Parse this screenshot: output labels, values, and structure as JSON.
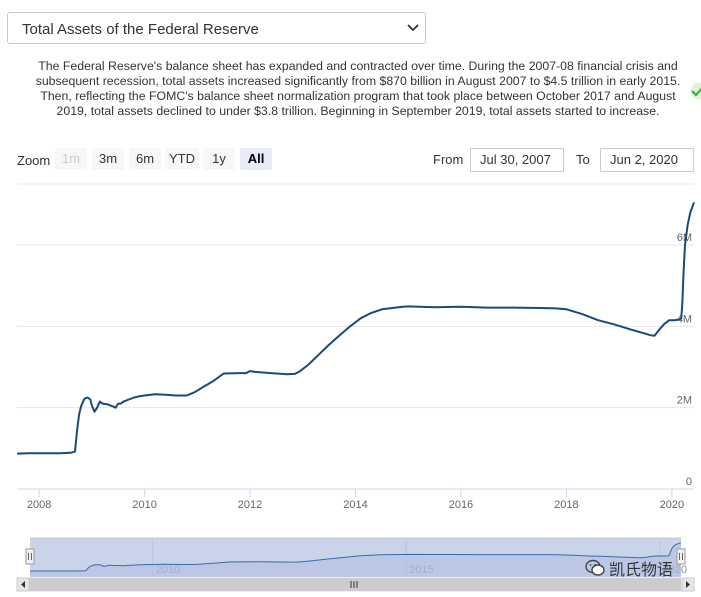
{
  "selector": {
    "label": "Total Assets of the Federal Reserve"
  },
  "description": "The Federal Reserve's balance sheet has expanded and contracted over time. During the 2007-08 financial crisis and subsequent recession, total assets increased significantly from $870 billion in August 2007 to $4.5 trillion in early 2015. Then, reflecting the FOMC's balance sheet normalization program that took place between October 2017 and August 2019, total assets declined to under $3.8 trillion. Beginning in September 2019, total assets started to increase.",
  "range_selector": {
    "zoom_label": "Zoom",
    "buttons": [
      {
        "label": "1m",
        "state": "disabled"
      },
      {
        "label": "3m",
        "state": "normal"
      },
      {
        "label": "6m",
        "state": "normal"
      },
      {
        "label": "YTD",
        "state": "normal"
      },
      {
        "label": "1y",
        "state": "normal"
      },
      {
        "label": "All",
        "state": "active"
      }
    ],
    "from_label": "From",
    "from_value": "Jul 30, 2007",
    "to_label": "To",
    "to_value": "Jun 2, 2020"
  },
  "watermark": "凯氏物语",
  "colors": {
    "line": "#1a4a7a",
    "navigator_fill": "#c9d3ea",
    "grid": "#e6e6e6"
  },
  "chart_data": {
    "type": "line",
    "xlabel": "",
    "ylabel": "",
    "xlim": [
      2007.58,
      2020.42
    ],
    "ylim": [
      0,
      7.5
    ],
    "x_ticks": [
      {
        "value": 2008,
        "label": "2008"
      },
      {
        "value": 2010,
        "label": "2010"
      },
      {
        "value": 2012,
        "label": "2012"
      },
      {
        "value": 2014,
        "label": "2014"
      },
      {
        "value": 2016,
        "label": "2016"
      },
      {
        "value": 2018,
        "label": "2018"
      },
      {
        "value": 2020,
        "label": "2020"
      }
    ],
    "y_ticks": [
      {
        "value": 0,
        "label": "0"
      },
      {
        "value": 2,
        "label": "2M"
      },
      {
        "value": 4,
        "label": "4M"
      },
      {
        "value": 6,
        "label": "6M"
      }
    ],
    "navigator_ticks": [
      {
        "value": 2010,
        "label": "2010"
      },
      {
        "value": 2015,
        "label": "2015"
      },
      {
        "value": 2020,
        "label": "2020"
      }
    ],
    "grid": true,
    "legend": "none",
    "series": [
      {
        "x": [
          2007.58,
          2007.8,
          2008.0,
          2008.2,
          2008.4,
          2008.6,
          2008.68,
          2008.72,
          2008.76,
          2008.8,
          2008.86,
          2008.92,
          2008.97,
          2009.0,
          2009.05,
          2009.1,
          2009.15,
          2009.2,
          2009.3,
          2009.4,
          2009.45,
          2009.5,
          2009.55,
          2009.6,
          2009.7,
          2009.8,
          2009.9,
          2010.0,
          2010.2,
          2010.4,
          2010.6,
          2010.8,
          2010.95,
          2011.1,
          2011.3,
          2011.5,
          2011.8,
          2011.92,
          2012.0,
          2012.1,
          2012.3,
          2012.5,
          2012.7,
          2012.85,
          2012.95,
          2013.1,
          2013.3,
          2013.5,
          2013.7,
          2013.9,
          2014.1,
          2014.3,
          2014.5,
          2014.7,
          2014.9,
          2015.0,
          2015.5,
          2016.0,
          2016.5,
          2017.0,
          2017.5,
          2017.8,
          2018.0,
          2018.3,
          2018.6,
          2018.9,
          2019.2,
          2019.5,
          2019.6,
          2019.67,
          2019.75,
          2019.85,
          2019.95,
          2020.05,
          2020.15,
          2020.18,
          2020.2,
          2020.22,
          2020.25,
          2020.3,
          2020.35,
          2020.42
        ],
        "y": [
          0.87,
          0.88,
          0.88,
          0.88,
          0.88,
          0.89,
          0.92,
          1.45,
          1.85,
          2.05,
          2.22,
          2.25,
          2.2,
          2.05,
          1.9,
          2.0,
          2.15,
          2.1,
          2.08,
          2.03,
          2.0,
          2.1,
          2.1,
          2.15,
          2.2,
          2.25,
          2.28,
          2.3,
          2.33,
          2.32,
          2.3,
          2.3,
          2.38,
          2.5,
          2.65,
          2.84,
          2.85,
          2.85,
          2.9,
          2.88,
          2.86,
          2.84,
          2.82,
          2.83,
          2.9,
          3.05,
          3.3,
          3.55,
          3.78,
          4.0,
          4.2,
          4.33,
          4.42,
          4.45,
          4.48,
          4.49,
          4.47,
          4.48,
          4.46,
          4.46,
          4.45,
          4.44,
          4.42,
          4.3,
          4.15,
          4.05,
          3.93,
          3.82,
          3.78,
          3.77,
          3.9,
          4.05,
          4.15,
          4.15,
          4.17,
          4.2,
          4.6,
          5.3,
          6.0,
          6.5,
          6.8,
          7.05
        ]
      }
    ]
  }
}
